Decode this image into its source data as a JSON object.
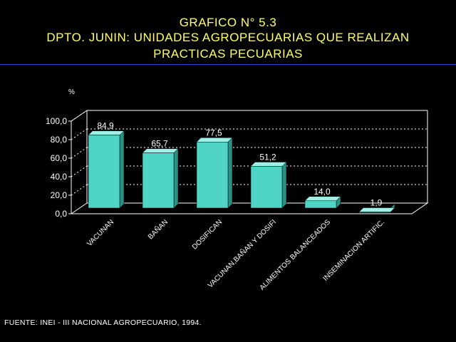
{
  "header": {
    "line1": "GRAFICO N° 5.3",
    "line2": "DPTO. JUNIN: UNIDADES AGROPECUARIAS QUE REALIZAN",
    "line3": "PRACTICAS PECUARIAS"
  },
  "footer": {
    "source": "FUENTE: INEI - III NACIONAL AGROPECUARIO, 1994."
  },
  "colors": {
    "bar_front": "#4fd3c4",
    "bar_side": "#2b8f84",
    "bar_top": "#9ff0e6",
    "title": "#ffff66",
    "rule": "#2a3fd8"
  },
  "chart_data": {
    "type": "bar",
    "title": "",
    "ylabel": "%",
    "xlabel": "",
    "ylim": [
      0,
      100
    ],
    "yticks": [
      "0,0",
      "20,0",
      "40,0",
      "60,0",
      "80,0",
      "100,0"
    ],
    "grid": true,
    "categories": [
      "VACUNAN",
      "BAÑAN",
      "DOSIFICAN",
      "VACUNAN,BAÑAN Y DOSIFI",
      "ALIMENTOS BALANCEADOS",
      "INSEMINACION ARTIFIC."
    ],
    "values": [
      84.9,
      65.7,
      77.5,
      51.2,
      14.0,
      1.9
    ],
    "value_labels": [
      "84,9",
      "65,7",
      "77,5",
      "51,2",
      "14,0",
      "1,9"
    ]
  }
}
